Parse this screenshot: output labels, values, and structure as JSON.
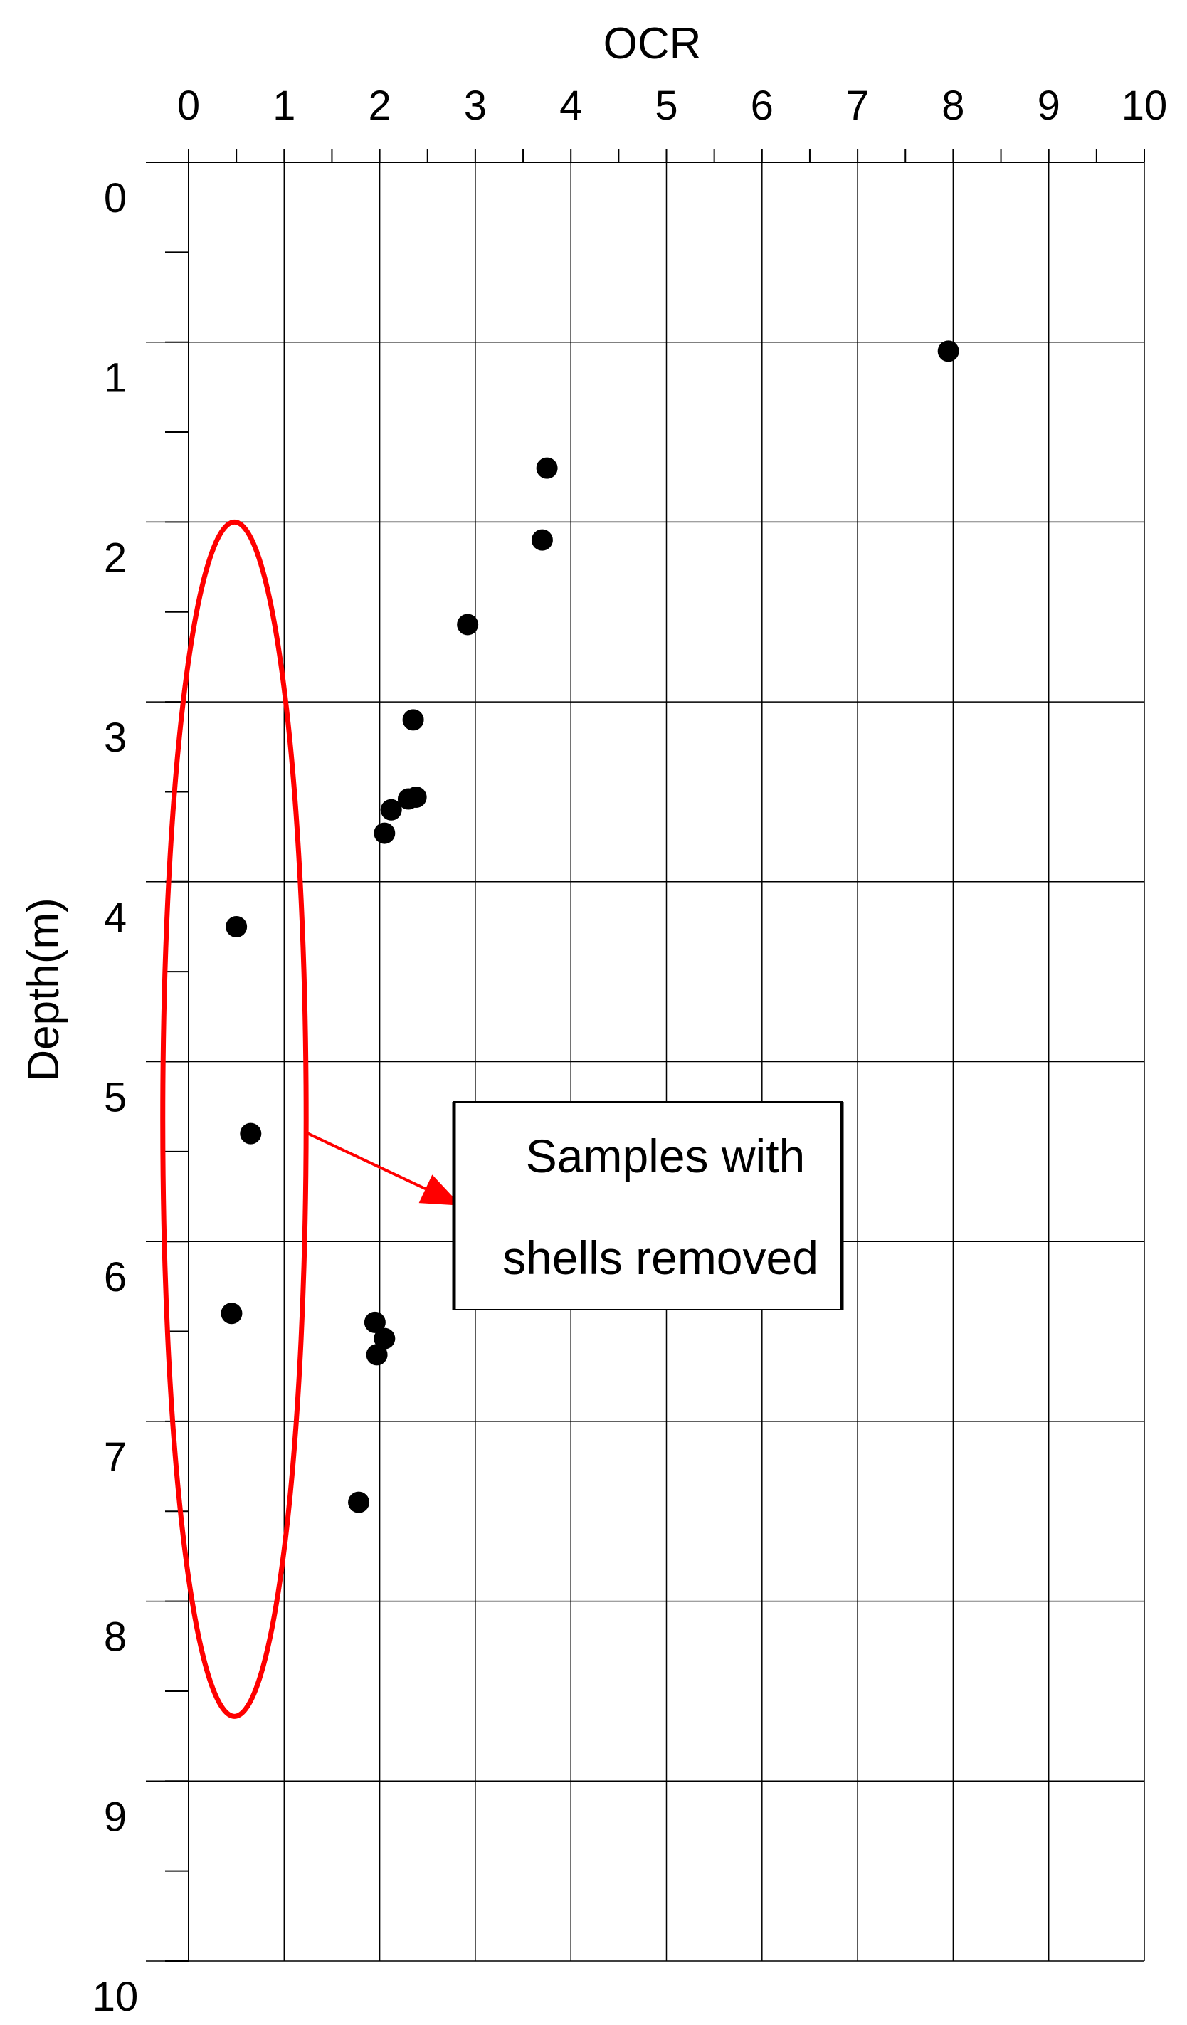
{
  "chart_data": {
    "type": "scatter",
    "title": "",
    "xlabel": "OCR",
    "ylabel": "Depth(m)",
    "xlim": [
      0,
      10
    ],
    "ylim": [
      0,
      10
    ],
    "x_axis_position": "top",
    "y_axis_inverted": true,
    "grid": true,
    "x_ticks": [
      "0",
      "1",
      "2",
      "3",
      "4",
      "5",
      "6",
      "7",
      "8",
      "9",
      "10"
    ],
    "y_ticks": [
      "0",
      "1",
      "2",
      "3",
      "4",
      "5",
      "6",
      "7",
      "8",
      "9",
      "10"
    ],
    "points": [
      {
        "x": 7.95,
        "y": 1.05
      },
      {
        "x": 3.75,
        "y": 1.7
      },
      {
        "x": 3.7,
        "y": 2.1
      },
      {
        "x": 2.92,
        "y": 2.57
      },
      {
        "x": 2.35,
        "y": 3.1
      },
      {
        "x": 2.38,
        "y": 3.53
      },
      {
        "x": 2.3,
        "y": 3.54
      },
      {
        "x": 2.12,
        "y": 3.6
      },
      {
        "x": 2.05,
        "y": 3.73
      },
      {
        "x": 0.5,
        "y": 4.25
      },
      {
        "x": 0.65,
        "y": 5.4
      },
      {
        "x": 0.45,
        "y": 6.4
      },
      {
        "x": 1.95,
        "y": 6.45
      },
      {
        "x": 2.05,
        "y": 6.54
      },
      {
        "x": 1.97,
        "y": 6.63
      },
      {
        "x": 1.78,
        "y": 7.45
      }
    ],
    "annotation": {
      "text_lines": [
        "Samples with",
        "shells removed"
      ],
      "ellipse": {
        "cx": 0.48,
        "cy": 5.32,
        "rx": 0.75,
        "ry": 3.32
      },
      "arrow_from": {
        "x": 1.25,
        "y": 5.4
      },
      "arrow_to": {
        "x": 2.85,
        "y": 5.8
      },
      "color": "#ff0000"
    }
  }
}
